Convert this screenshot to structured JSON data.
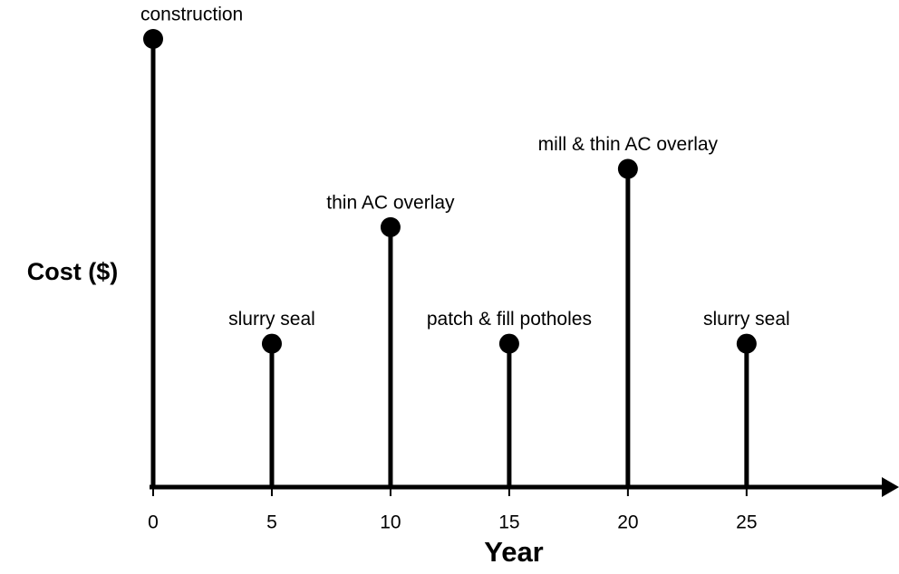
{
  "chart_data": {
    "type": "stem",
    "x_label": "Year",
    "y_label": "Cost ($)",
    "x": [
      0,
      5,
      10,
      15,
      20,
      25
    ],
    "values": [
      100,
      32,
      58,
      32,
      71,
      32
    ],
    "labels": [
      "construction",
      "slurry seal",
      "thin AC overlay",
      "patch & fill potholes",
      "mill & thin AC overlay",
      "slurry seal"
    ],
    "color": "#000000",
    "xlim": [
      0,
      31
    ],
    "xticks": [
      0,
      5,
      10,
      15,
      20,
      25
    ],
    "ylim": [
      0,
      100
    ]
  }
}
